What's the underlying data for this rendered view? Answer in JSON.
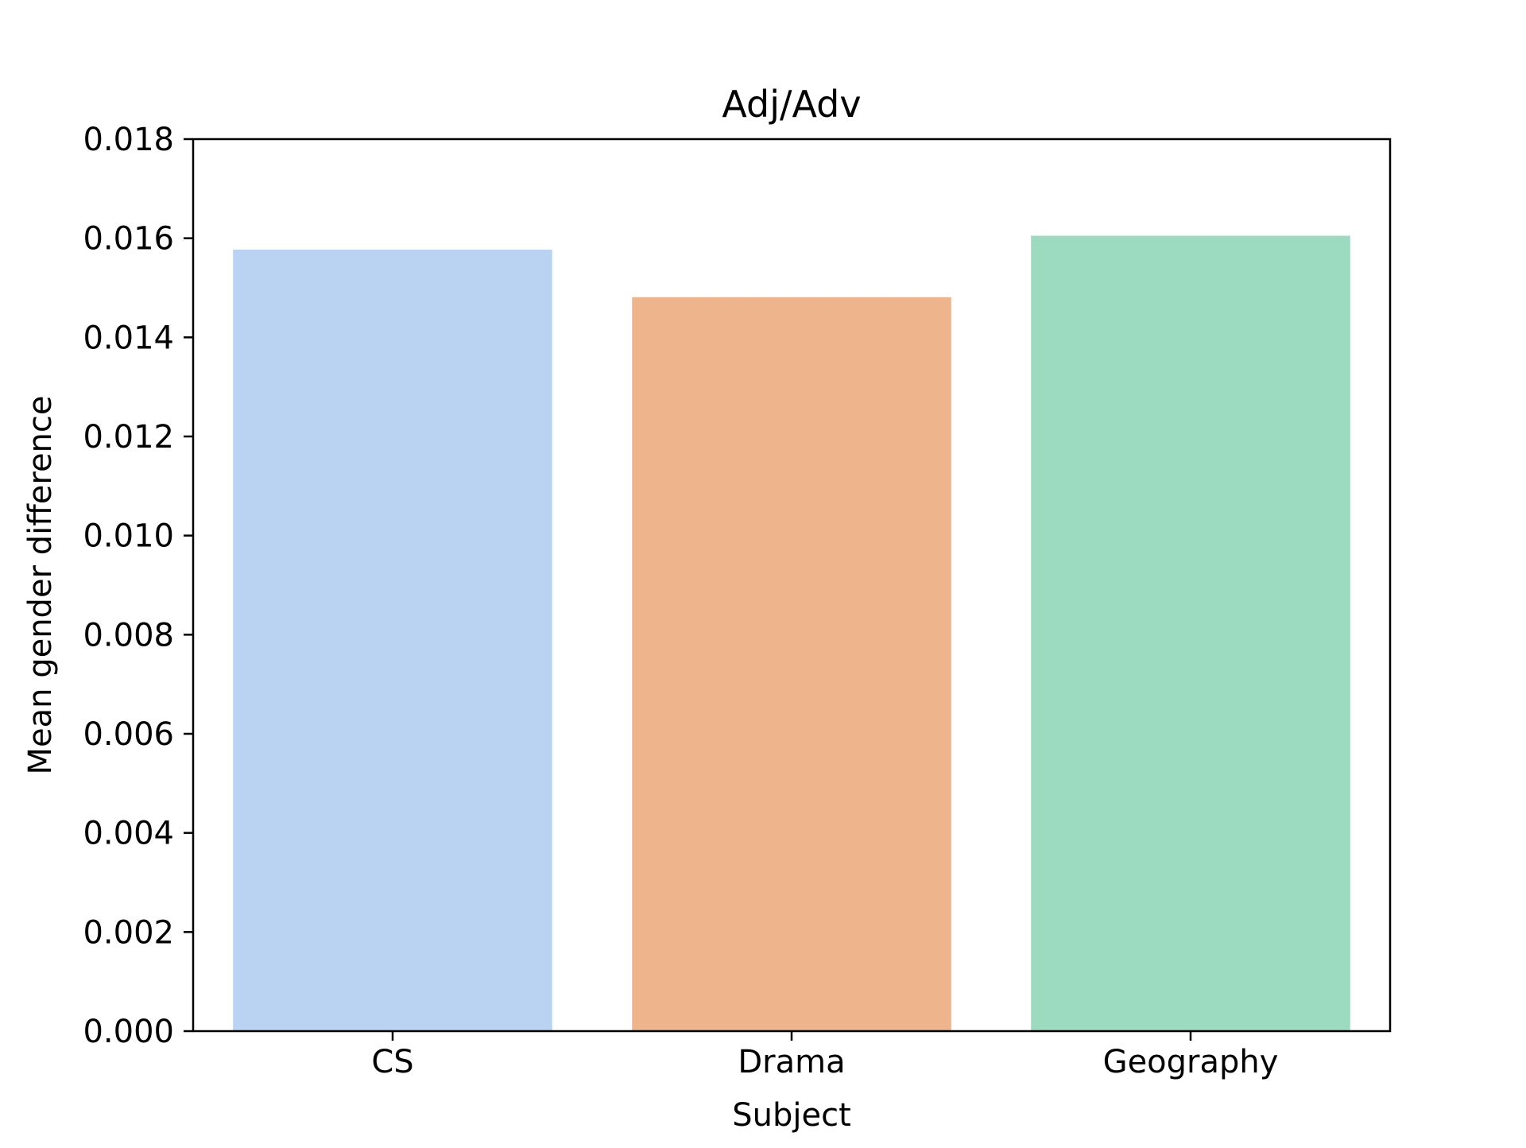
{
  "chart_data": {
    "type": "bar",
    "title": "Adj/Adv",
    "xlabel": "Subject",
    "ylabel": "Mean gender difference",
    "categories": [
      "CS",
      "Drama",
      "Geography"
    ],
    "values": [
      0.01577,
      0.01481,
      0.01605
    ],
    "colors": [
      "#bad3f2",
      "#eeb48c",
      "#9cdbbf"
    ],
    "ylim": [
      0,
      0.018
    ],
    "yticks": [
      "0.000",
      "0.002",
      "0.004",
      "0.006",
      "0.008",
      "0.010",
      "0.012",
      "0.014",
      "0.016",
      "0.018"
    ],
    "ytick_values": [
      0,
      0.002,
      0.004,
      0.006,
      0.008,
      0.01,
      0.012,
      0.014,
      0.016,
      0.018
    ],
    "grid": false,
    "legend": "none"
  }
}
